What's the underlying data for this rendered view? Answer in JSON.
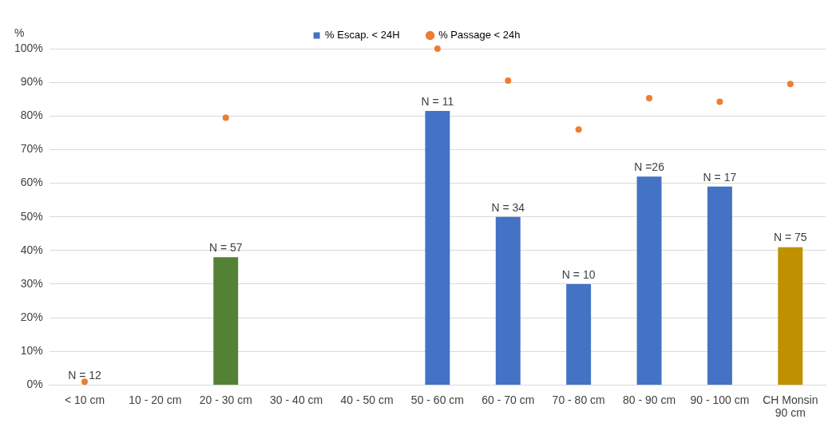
{
  "chart_data": {
    "type": "bar",
    "ylabel": "%",
    "categories": [
      "< 10 cm",
      "10 - 20 cm",
      "20 - 30 cm",
      "30 - 40 cm",
      "40 - 50 cm",
      "50 - 60 cm",
      "60 - 70 cm",
      "70 - 80 cm",
      "80 - 90 cm",
      "90 - 100 cm",
      "CH Monsin 90 cm"
    ],
    "series": [
      {
        "name": "% Escap. < 24H",
        "color": "#4472c4",
        "colors": [
          "#4472c4",
          "#4472c4",
          "#548235",
          "#4472c4",
          "#4472c4",
          "#4472c4",
          "#4472c4",
          "#4472c4",
          "#4472c4",
          "#4472c4",
          "#bf9000"
        ],
        "values": [
          0,
          null,
          38,
          null,
          null,
          81.5,
          50,
          30,
          62,
          59,
          41
        ]
      },
      {
        "name": "% Passage < 24h",
        "type": "scatter",
        "color": "#ed7d31",
        "values": [
          1,
          null,
          79.5,
          null,
          null,
          100,
          90.5,
          76,
          85.3,
          84.2,
          89.5
        ]
      }
    ],
    "ylim": [
      0,
      100
    ],
    "yticks": [
      {
        "value": 0,
        "label": "0%"
      },
      {
        "value": 10,
        "label": "10%"
      },
      {
        "value": 20,
        "label": "20%"
      },
      {
        "value": 30,
        "label": "30%"
      },
      {
        "value": 40,
        "label": "40%"
      },
      {
        "value": 50,
        "label": "50%"
      },
      {
        "value": 60,
        "label": "60%"
      },
      {
        "value": 70,
        "label": "70%"
      },
      {
        "value": 80,
        "label": "80%"
      },
      {
        "value": 90,
        "label": "90%"
      },
      {
        "value": 100,
        "label": "100%"
      }
    ],
    "grid": "y",
    "legend": "top",
    "marker": "circle",
    "annotations": [
      {
        "text": "N = 12",
        "x": "< 10 cm",
        "y": 0
      },
      {
        "text": "N = 57",
        "x": "20 - 30 cm",
        "y": 38
      },
      {
        "text": "N = 11",
        "x": "50 - 60 cm",
        "y": 81.5
      },
      {
        "text": "N = 34",
        "x": "60 - 70 cm",
        "y": 50
      },
      {
        "text": "N = 10",
        "x": "70 - 80 cm",
        "y": 30
      },
      {
        "text": "N =26",
        "x": "80 - 90 cm",
        "y": 62
      },
      {
        "text": "N = 17",
        "x": "90 - 100 cm",
        "y": 59
      },
      {
        "text": "N = 75",
        "x": "CH Monsin 90 cm",
        "y": 41
      }
    ]
  }
}
